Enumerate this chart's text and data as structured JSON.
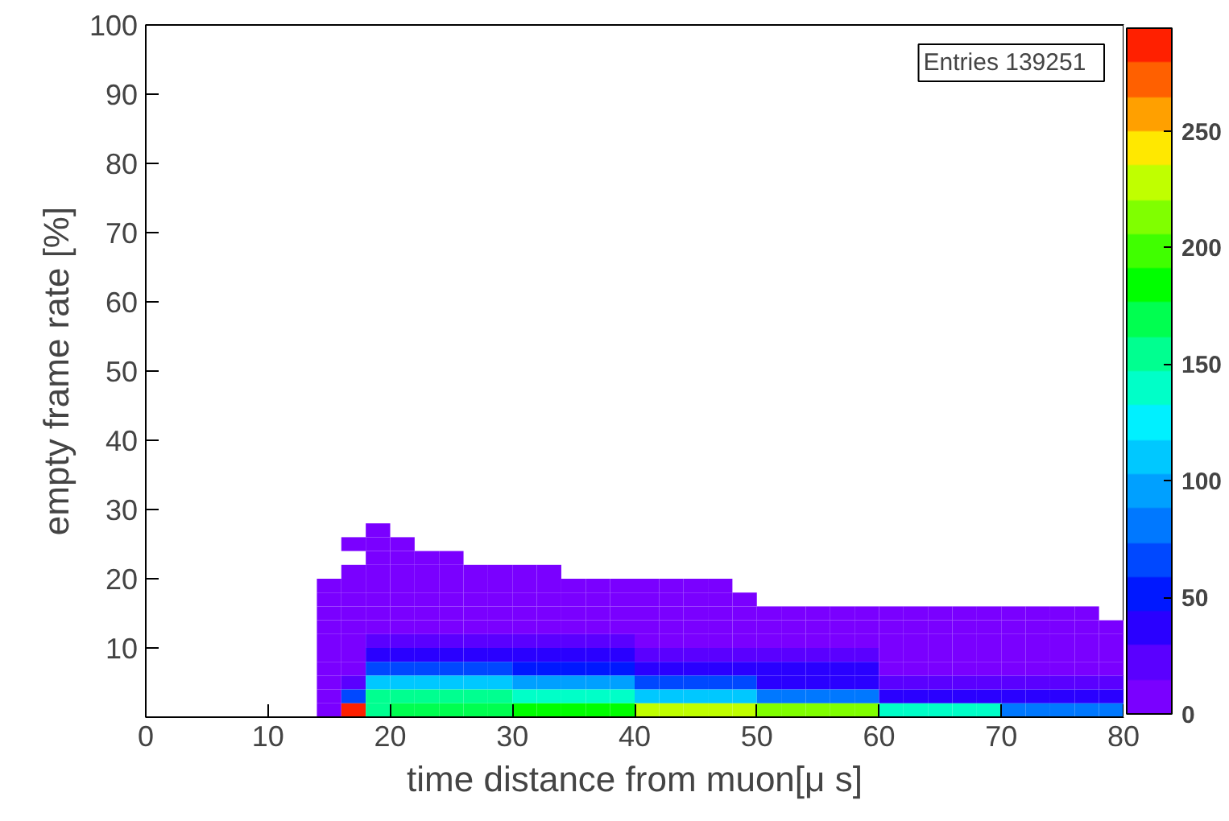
{
  "chart_data": {
    "type": "heatmap",
    "xlabel": "time distance from muon[μ s]",
    "ylabel": "empty frame rate [%]",
    "annotations": [
      "Entries   139251"
    ],
    "x": [
      15,
      17,
      19,
      21,
      23,
      25,
      27,
      29,
      31,
      33,
      35,
      37,
      39,
      41,
      43,
      45,
      47,
      49,
      51,
      53,
      55,
      57,
      59,
      61,
      63,
      65,
      67,
      69,
      71,
      73,
      75,
      77,
      79
    ],
    "y": [
      27,
      25,
      23,
      21,
      19,
      17,
      15,
      13,
      11,
      9,
      7,
      5,
      3,
      1
    ],
    "cells": [
      [
        null,
        null,
        1,
        null,
        null,
        null,
        null,
        null,
        null,
        null,
        null,
        null,
        null,
        null,
        null,
        null,
        null,
        null,
        null,
        null,
        null,
        null,
        null,
        null,
        null,
        null,
        null,
        null,
        null,
        null,
        null,
        null,
        null
      ],
      [
        null,
        1,
        1,
        1,
        null,
        null,
        null,
        null,
        null,
        null,
        null,
        null,
        null,
        null,
        null,
        null,
        null,
        null,
        null,
        null,
        null,
        null,
        null,
        null,
        null,
        null,
        null,
        null,
        null,
        null,
        null,
        null,
        null
      ],
      [
        null,
        null,
        1,
        1,
        1,
        1,
        null,
        null,
        null,
        null,
        null,
        null,
        null,
        null,
        null,
        null,
        null,
        null,
        null,
        null,
        null,
        null,
        null,
        null,
        null,
        null,
        null,
        null,
        null,
        null,
        null,
        null,
        null
      ],
      [
        null,
        1,
        2,
        2,
        2,
        2,
        2,
        2,
        1,
        1,
        null,
        null,
        null,
        null,
        null,
        null,
        null,
        null,
        null,
        null,
        null,
        null,
        null,
        null,
        null,
        null,
        null,
        null,
        null,
        null,
        null,
        null,
        null
      ],
      [
        1,
        1,
        3,
        3,
        3,
        3,
        3,
        3,
        3,
        3,
        1,
        1,
        1,
        1,
        1,
        1,
        1,
        null,
        null,
        null,
        null,
        null,
        null,
        null,
        null,
        null,
        null,
        null,
        null,
        null,
        null,
        null,
        null
      ],
      [
        1,
        2,
        4,
        4,
        4,
        4,
        4,
        4,
        2,
        2,
        2,
        2,
        2,
        1,
        1,
        1,
        1,
        1,
        null,
        null,
        null,
        null,
        null,
        null,
        null,
        null,
        null,
        null,
        null,
        null,
        null,
        null,
        null
      ],
      [
        1,
        2,
        6,
        6,
        6,
        6,
        6,
        6,
        4,
        4,
        4,
        4,
        4,
        2,
        2,
        2,
        2,
        2,
        2,
        2,
        2,
        2,
        2,
        1,
        1,
        1,
        1,
        1,
        1,
        1,
        1,
        1,
        null
      ],
      [
        1,
        3,
        12,
        12,
        12,
        12,
        12,
        12,
        8,
        8,
        8,
        8,
        8,
        3,
        3,
        3,
        3,
        3,
        3,
        3,
        3,
        3,
        3,
        1,
        1,
        1,
        1,
        1,
        1,
        1,
        1,
        1,
        1
      ],
      [
        1,
        4,
        25,
        25,
        25,
        25,
        25,
        25,
        18,
        18,
        18,
        18,
        18,
        8,
        8,
        8,
        8,
        8,
        8,
        8,
        8,
        8,
        8,
        3,
        3,
        3,
        3,
        3,
        3,
        3,
        3,
        3,
        3
      ],
      [
        1,
        5,
        35,
        35,
        35,
        35,
        35,
        35,
        30,
        30,
        30,
        30,
        30,
        15,
        15,
        15,
        15,
        15,
        15,
        15,
        15,
        15,
        15,
        5,
        5,
        5,
        5,
        5,
        5,
        5,
        5,
        5,
        5
      ],
      [
        1,
        8,
        60,
        60,
        60,
        60,
        60,
        60,
        50,
        50,
        50,
        50,
        50,
        30,
        30,
        30,
        30,
        30,
        30,
        30,
        30,
        30,
        30,
        12,
        12,
        12,
        12,
        12,
        12,
        12,
        12,
        12,
        12
      ],
      [
        1,
        15,
        110,
        110,
        110,
        110,
        110,
        110,
        90,
        90,
        90,
        90,
        90,
        60,
        60,
        60,
        60,
        60,
        40,
        40,
        40,
        40,
        40,
        25,
        25,
        25,
        25,
        25,
        25,
        25,
        25,
        25,
        25
      ],
      [
        2,
        60,
        160,
        160,
        160,
        160,
        160,
        160,
        140,
        140,
        140,
        140,
        140,
        110,
        110,
        110,
        110,
        110,
        80,
        80,
        80,
        80,
        80,
        40,
        40,
        40,
        40,
        40,
        40,
        40,
        40,
        40,
        40
      ],
      [
        5,
        280,
        150,
        170,
        170,
        170,
        170,
        170,
        190,
        190,
        190,
        190,
        190,
        230,
        230,
        230,
        230,
        230,
        210,
        210,
        210,
        210,
        210,
        140,
        140,
        140,
        140,
        140,
        80,
        80,
        80,
        80,
        80
      ]
    ],
    "xlim": [
      0,
      80
    ],
    "ylim": [
      0,
      100
    ],
    "xticks": [
      0,
      10,
      20,
      30,
      40,
      50,
      60,
      70,
      80
    ],
    "yticks": [
      {
        "value": 0,
        "label": null
      },
      10,
      20,
      30,
      40,
      50,
      60,
      70,
      80,
      90,
      100
    ],
    "clim": [
      0,
      294
    ],
    "cticks": [
      0,
      50,
      100,
      150,
      200,
      250
    ],
    "grid": false
  }
}
